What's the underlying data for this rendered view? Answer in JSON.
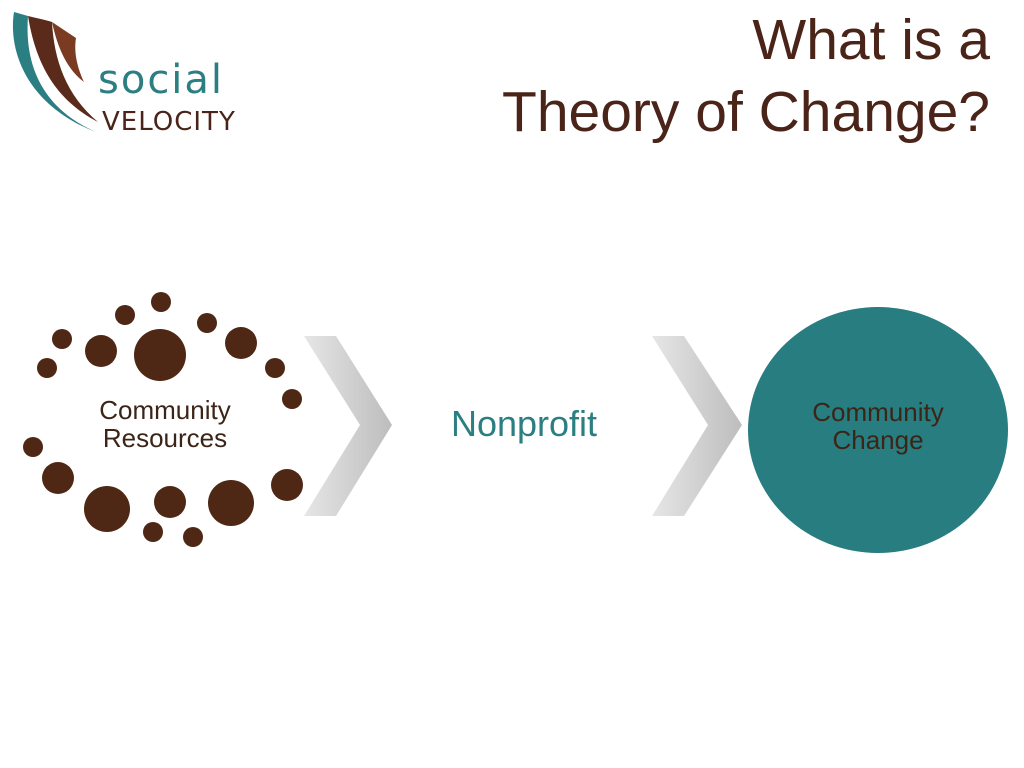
{
  "logo": {
    "line1": "social",
    "line2": "VELOCITY"
  },
  "title": {
    "line1": "What is a",
    "line2": "Theory of Change?"
  },
  "diagram": {
    "resources": "Community Resources",
    "nonprofit": "Nonprofit",
    "change": "Community Change"
  },
  "colors": {
    "brown": "#4a2418",
    "dot_brown": "#4f2815",
    "teal": "#2b7e82",
    "circle_teal": "#287d80",
    "chevron_gray": "#cfcfcf"
  }
}
